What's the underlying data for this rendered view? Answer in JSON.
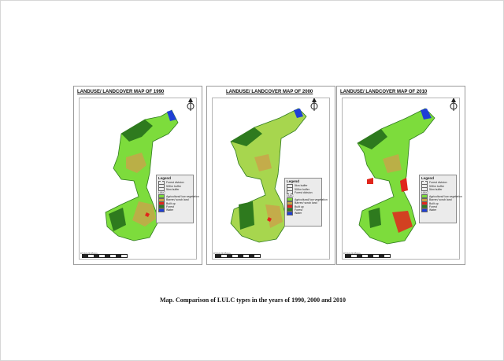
{
  "maps": [
    {
      "title": "LANDUSE/ LANDCOVER MAP OF 1990",
      "legend": {
        "title": "Legend",
        "boundaries": [
          "Forest division",
          "50Km buffer",
          "5km buffer"
        ],
        "lulc_header": "LULC",
        "classes": [
          "Agricultural/ low vegetation",
          "Barren/ scrub land",
          "Built up",
          "Forest",
          "Water"
        ]
      },
      "scale": "0   5   10   20        25 km"
    },
    {
      "title": "LANDUSE/ LANDCOVER MAP OF 2000",
      "legend": {
        "title": "Legend",
        "boundaries": [
          "5km buffer",
          "50Km buffer",
          "Forest division"
        ],
        "lulc_header": "LULC",
        "classes": [
          "Agricultural/ low vegetation",
          "Barren/ scrub land",
          "Built up",
          "Forest",
          "Water"
        ]
      },
      "scale": "0   5   10   20        25 km"
    },
    {
      "title": "LANDUSE/ LANDCOVER MAP OF 2010",
      "legend": {
        "title": "Legend",
        "boundaries": [
          "Forest division",
          "50Km buffer",
          "5km buffer"
        ],
        "lulc_header": "LULC",
        "classes": [
          "Agricultural/ low vegetation",
          "Barren/ scrub land",
          "Built up",
          "Forest",
          "Water"
        ]
      },
      "scale": "0   5   10   20        25 km"
    }
  ],
  "colors": {
    "agri": "#7ddc3c",
    "barren": "#c9a44a",
    "built": "#e0261c",
    "forest": "#2e7a1e",
    "water": "#1f3fd6"
  },
  "caption": "Map. Comparison of LULC types in the years of 1990, 2000 and 2010"
}
